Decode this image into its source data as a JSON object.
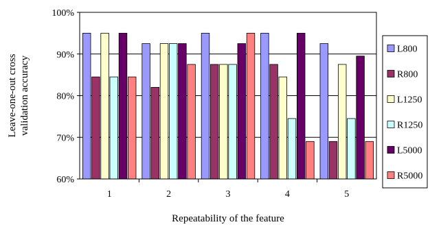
{
  "chart_data": {
    "type": "bar",
    "title": "",
    "xlabel": "Repeatability of the feature",
    "ylabel_lines": [
      "Leave-one-out cross",
      "validation accuracy"
    ],
    "categories": [
      "1",
      "2",
      "3",
      "4",
      "5"
    ],
    "ylim": [
      60,
      100
    ],
    "yticks": [
      "60%",
      "70%",
      "80%",
      "90%",
      "100%"
    ],
    "ytick_values": [
      60,
      70,
      80,
      90,
      100
    ],
    "grid": true,
    "legend_position": "right",
    "series": [
      {
        "name": "L800",
        "color": "#9999ff",
        "values": [
          95,
          92.5,
          95,
          95,
          92.5
        ]
      },
      {
        "name": "R800",
        "color": "#993366",
        "values": [
          84.5,
          82,
          87.5,
          87.5,
          69
        ]
      },
      {
        "name": "L1250",
        "color": "#ffffcc",
        "values": [
          95,
          92.5,
          87.5,
          84.5,
          87.5
        ]
      },
      {
        "name": "R1250",
        "color": "#ccffff",
        "values": [
          84.5,
          92.5,
          87.5,
          74.5,
          74.5
        ]
      },
      {
        "name": "L5000",
        "color": "#660066",
        "values": [
          95,
          92.5,
          92.5,
          95,
          89.5
        ]
      },
      {
        "name": "R5000",
        "color": "#ff8080",
        "values": [
          84.5,
          87.5,
          95,
          69,
          69
        ]
      }
    ]
  }
}
